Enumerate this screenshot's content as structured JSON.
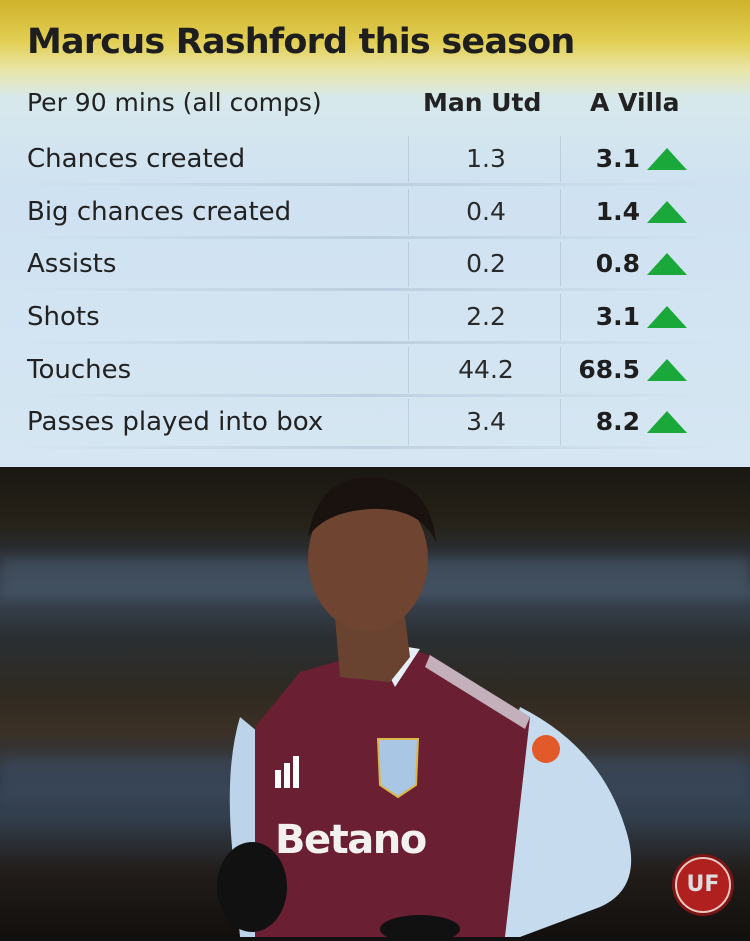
{
  "title": "Marcus Rashford this season",
  "table": {
    "headers": [
      "Per 90 mins (all comps)",
      "Man Utd",
      "A Villa"
    ],
    "rows": [
      {
        "label": "Chances created",
        "man_utd": "1.3",
        "a_villa": "3.1",
        "trend": "up"
      },
      {
        "label": "Big chances created",
        "man_utd": "0.4",
        "a_villa": "1.4",
        "trend": "up"
      },
      {
        "label": "Assists",
        "man_utd": "0.2",
        "a_villa": "0.8",
        "trend": "up"
      },
      {
        "label": "Shots",
        "man_utd": "2.2",
        "a_villa": "3.1",
        "trend": "up"
      },
      {
        "label": "Touches",
        "man_utd": "44.2",
        "a_villa": "68.5",
        "trend": "up"
      },
      {
        "label": "Passes played into box",
        "man_utd": "3.4",
        "a_villa": "8.2",
        "trend": "up"
      }
    ]
  },
  "photo": {
    "shirt_sponsor": "Betano"
  },
  "watermark": "UF",
  "colors": {
    "up_arrow": "#1aa83a",
    "header_top": "#cfb22a",
    "panel": "#d6e6f3",
    "shirt": "#6b1f33",
    "sleeve": "#bcd3ea"
  }
}
